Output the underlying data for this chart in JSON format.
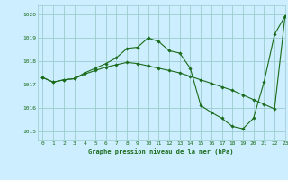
{
  "title": "Graphe pression niveau de la mer (hPa)",
  "background_color": "#cceeff",
  "grid_color": "#99cccc",
  "line_color": "#1a6b1a",
  "marker_color": "#1a6b1a",
  "xlim": [
    -0.5,
    23
  ],
  "ylim": [
    1014.6,
    1020.4
  ],
  "yticks": [
    1015,
    1016,
    1017,
    1018,
    1019,
    1020
  ],
  "xticks": [
    0,
    1,
    2,
    3,
    4,
    5,
    6,
    7,
    8,
    9,
    10,
    11,
    12,
    13,
    14,
    15,
    16,
    17,
    18,
    19,
    20,
    21,
    22,
    23
  ],
  "series1_x": [
    0,
    1,
    2,
    3,
    4,
    5,
    6,
    7,
    8,
    9,
    10,
    11,
    12,
    13,
    14,
    15,
    16,
    17,
    18,
    19,
    20,
    21,
    22,
    23
  ],
  "series1_y": [
    1017.3,
    1017.1,
    1017.2,
    1017.25,
    1017.5,
    1017.7,
    1017.9,
    1018.15,
    1018.55,
    1018.6,
    1019.0,
    1018.85,
    1018.45,
    1018.35,
    1017.7,
    1016.1,
    1015.8,
    1015.55,
    1015.2,
    1015.1,
    1015.55,
    1017.1,
    1019.15,
    1019.95
  ],
  "series2_x": [
    0,
    1,
    2,
    3,
    4,
    5,
    6,
    7,
    8,
    9,
    10,
    11,
    12,
    13,
    14,
    15,
    16,
    17,
    18,
    19,
    20,
    21,
    22,
    23
  ],
  "series2_y": [
    1017.3,
    1017.1,
    1017.2,
    1017.25,
    1017.45,
    1017.6,
    1017.75,
    1017.85,
    1017.95,
    1017.9,
    1017.8,
    1017.7,
    1017.6,
    1017.5,
    1017.35,
    1017.2,
    1017.05,
    1016.9,
    1016.75,
    1016.55,
    1016.35,
    1016.15,
    1015.95,
    1019.95
  ]
}
